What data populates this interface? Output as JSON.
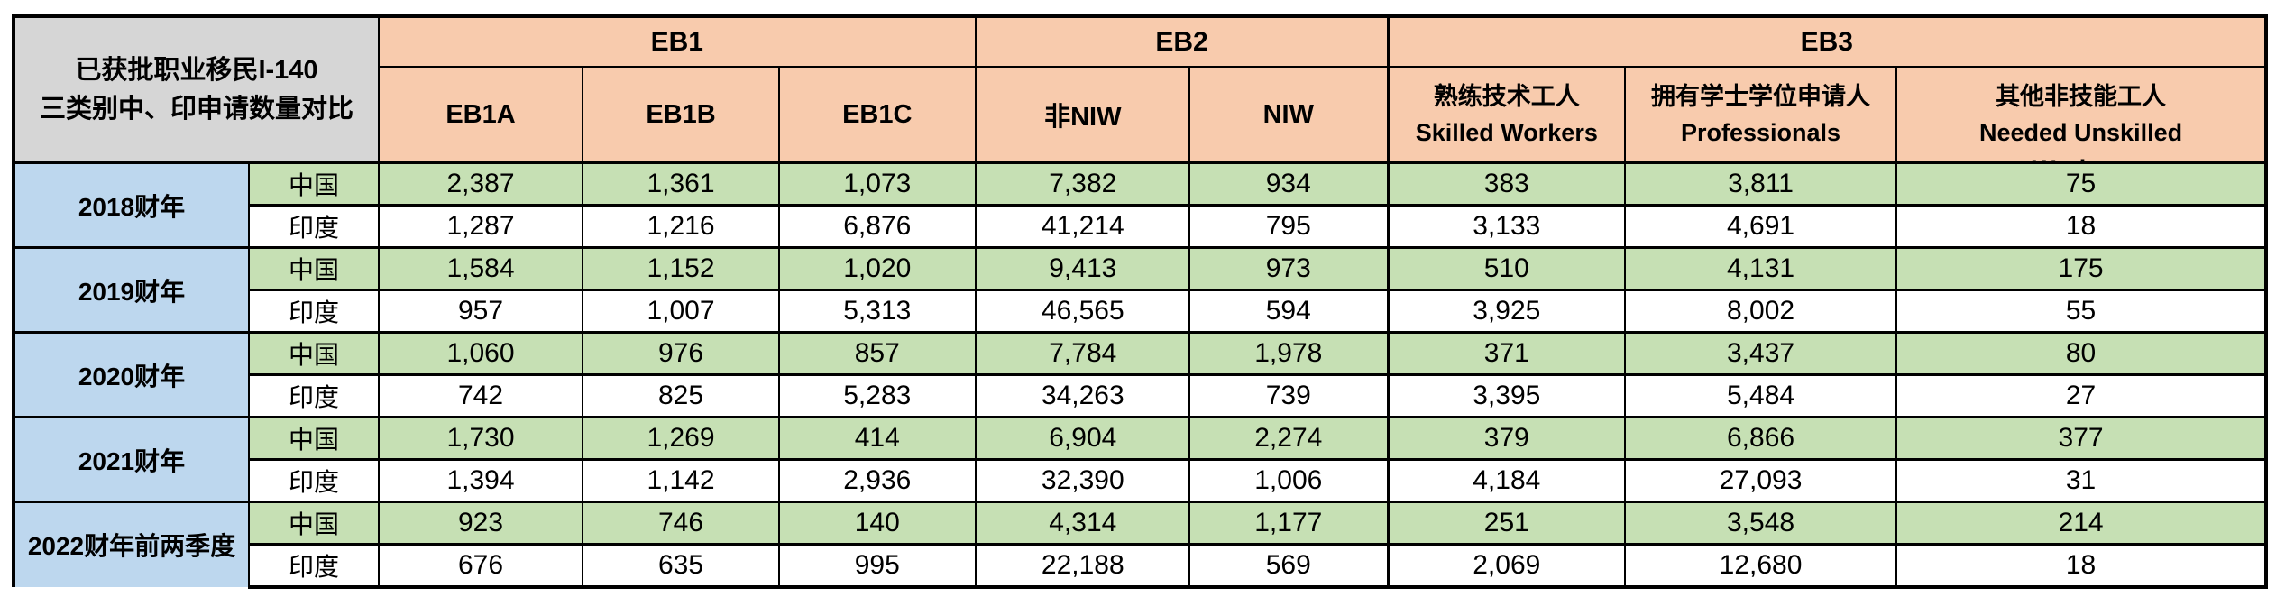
{
  "colors": {
    "header_fill": "#F8CBAD",
    "corner_fill": "#D6D6D6",
    "year_fill": "#BDD7EE",
    "china_fill": "#C6E0B4",
    "india_fill": "#FFFFFF",
    "border": "#000000"
  },
  "chart_data": {
    "type": "table",
    "title": "已获批职业移民I-140 三类别中、印申请数量对比",
    "corner_label": {
      "line1": "已获批职业移民I-140",
      "line2": "三类别中、印申请数量对比"
    },
    "column_groups": [
      {
        "label": "EB1",
        "colspan": 3
      },
      {
        "label": "EB2",
        "colspan": 2
      },
      {
        "label": "EB3",
        "colspan": 3
      }
    ],
    "column_headers": [
      {
        "line1": "EB1A"
      },
      {
        "line1": "EB1B"
      },
      {
        "line1": "EB1C"
      },
      {
        "line1": "非NIW"
      },
      {
        "line1": "NIW"
      },
      {
        "line1": "熟练技术工人",
        "line2": "Skilled Workers"
      },
      {
        "line1": "拥有学士学位申请人",
        "line2": "Professionals"
      },
      {
        "line1": "其他非技能工人",
        "line2": "Needed Unskilled",
        "line3": "Workers"
      }
    ],
    "rows": [
      {
        "year": "2018财年",
        "entries": [
          {
            "country": "中国",
            "values": [
              "2,387",
              "1,361",
              "1,073",
              "7,382",
              "934",
              "383",
              "3,811",
              "75"
            ]
          },
          {
            "country": "印度",
            "values": [
              "1,287",
              "1,216",
              "6,876",
              "41,214",
              "795",
              "3,133",
              "4,691",
              "18"
            ]
          }
        ]
      },
      {
        "year": "2019财年",
        "entries": [
          {
            "country": "中国",
            "values": [
              "1,584",
              "1,152",
              "1,020",
              "9,413",
              "973",
              "510",
              "4,131",
              "175"
            ]
          },
          {
            "country": "印度",
            "values": [
              "957",
              "1,007",
              "5,313",
              "46,565",
              "594",
              "3,925",
              "8,002",
              "55"
            ]
          }
        ]
      },
      {
        "year": "2020财年",
        "entries": [
          {
            "country": "中国",
            "values": [
              "1,060",
              "976",
              "857",
              "7,784",
              "1,978",
              "371",
              "3,437",
              "80"
            ]
          },
          {
            "country": "印度",
            "values": [
              "742",
              "825",
              "5,283",
              "34,263",
              "739",
              "3,395",
              "5,484",
              "27"
            ]
          }
        ]
      },
      {
        "year": "2021财年",
        "entries": [
          {
            "country": "中国",
            "values": [
              "1,730",
              "1,269",
              "414",
              "6,904",
              "2,274",
              "379",
              "6,866",
              "377"
            ]
          },
          {
            "country": "印度",
            "values": [
              "1,394",
              "1,142",
              "2,936",
              "32,390",
              "1,006",
              "4,184",
              "27,093",
              "31"
            ]
          }
        ]
      },
      {
        "year": "2022财年前两季度",
        "entries": [
          {
            "country": "中国",
            "values": [
              "923",
              "746",
              "140",
              "4,314",
              "1,177",
              "251",
              "3,548",
              "214"
            ]
          },
          {
            "country": "印度",
            "values": [
              "676",
              "635",
              "995",
              "22,188",
              "569",
              "2,069",
              "12,680",
              "18"
            ]
          }
        ]
      }
    ]
  }
}
